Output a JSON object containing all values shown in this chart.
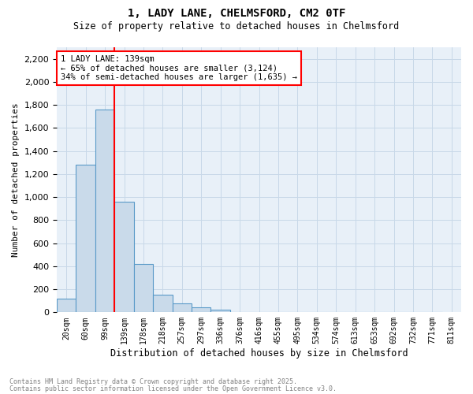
{
  "title": "1, LADY LANE, CHELMSFORD, CM2 0TF",
  "subtitle": "Size of property relative to detached houses in Chelmsford",
  "xlabel": "Distribution of detached houses by size in Chelmsford",
  "ylabel": "Number of detached properties",
  "bins": [
    "20sqm",
    "60sqm",
    "99sqm",
    "139sqm",
    "178sqm",
    "218sqm",
    "257sqm",
    "297sqm",
    "336sqm",
    "376sqm",
    "416sqm",
    "455sqm",
    "495sqm",
    "534sqm",
    "574sqm",
    "613sqm",
    "653sqm",
    "692sqm",
    "732sqm",
    "771sqm",
    "811sqm"
  ],
  "bar_heights": [
    120,
    1280,
    1760,
    960,
    420,
    155,
    80,
    45,
    25,
    0,
    0,
    0,
    0,
    0,
    0,
    0,
    0,
    0,
    0,
    0
  ],
  "bar_color": "#c9daea",
  "bar_edge_color": "#5a9ac8",
  "vline_color": "red",
  "annotation_text": "1 LADY LANE: 139sqm\n← 65% of detached houses are smaller (3,124)\n34% of semi-detached houses are larger (1,635) →",
  "annotation_box_color": "white",
  "annotation_box_edge_color": "red",
  "ylim": [
    0,
    2300
  ],
  "yticks": [
    0,
    200,
    400,
    600,
    800,
    1000,
    1200,
    1400,
    1600,
    1800,
    2000,
    2200
  ],
  "grid_color": "#c8d8e8",
  "bg_color": "#e8f0f8",
  "footer1": "Contains HM Land Registry data © Crown copyright and database right 2025.",
  "footer2": "Contains public sector information licensed under the Open Government Licence v3.0."
}
